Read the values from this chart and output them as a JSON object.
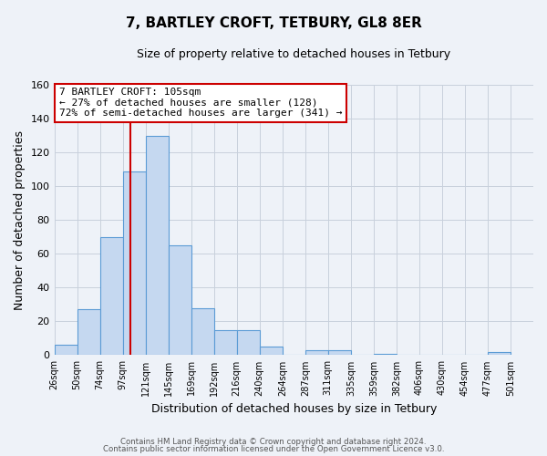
{
  "title": "7, BARTLEY CROFT, TETBURY, GL8 8ER",
  "subtitle": "Size of property relative to detached houses in Tetbury",
  "xlabel": "Distribution of detached houses by size in Tetbury",
  "ylabel": "Number of detached properties",
  "bin_labels": [
    "26sqm",
    "50sqm",
    "74sqm",
    "97sqm",
    "121sqm",
    "145sqm",
    "169sqm",
    "192sqm",
    "216sqm",
    "240sqm",
    "264sqm",
    "287sqm",
    "311sqm",
    "335sqm",
    "359sqm",
    "382sqm",
    "406sqm",
    "430sqm",
    "454sqm",
    "477sqm",
    "501sqm"
  ],
  "bar_values": [
    6,
    27,
    70,
    109,
    130,
    65,
    28,
    15,
    15,
    5,
    0,
    3,
    3,
    0,
    1,
    0,
    0,
    0,
    0,
    2
  ],
  "bar_color": "#c5d8f0",
  "bar_edge_color": "#5b9bd5",
  "vline_color": "#cc0000",
  "ylim": [
    0,
    160
  ],
  "yticks": [
    0,
    20,
    40,
    60,
    80,
    100,
    120,
    140,
    160
  ],
  "annotation_title": "7 BARTLEY CROFT: 105sqm",
  "annotation_line1": "← 27% of detached houses are smaller (128)",
  "annotation_line2": "72% of semi-detached houses are larger (341) →",
  "annotation_box_color": "#ffffff",
  "annotation_box_edge": "#cc0000",
  "footer_line1": "Contains HM Land Registry data © Crown copyright and database right 2024.",
  "footer_line2": "Contains public sector information licensed under the Open Government Licence v3.0.",
  "background_color": "#eef2f8",
  "grid_color": "#c8d0dc"
}
